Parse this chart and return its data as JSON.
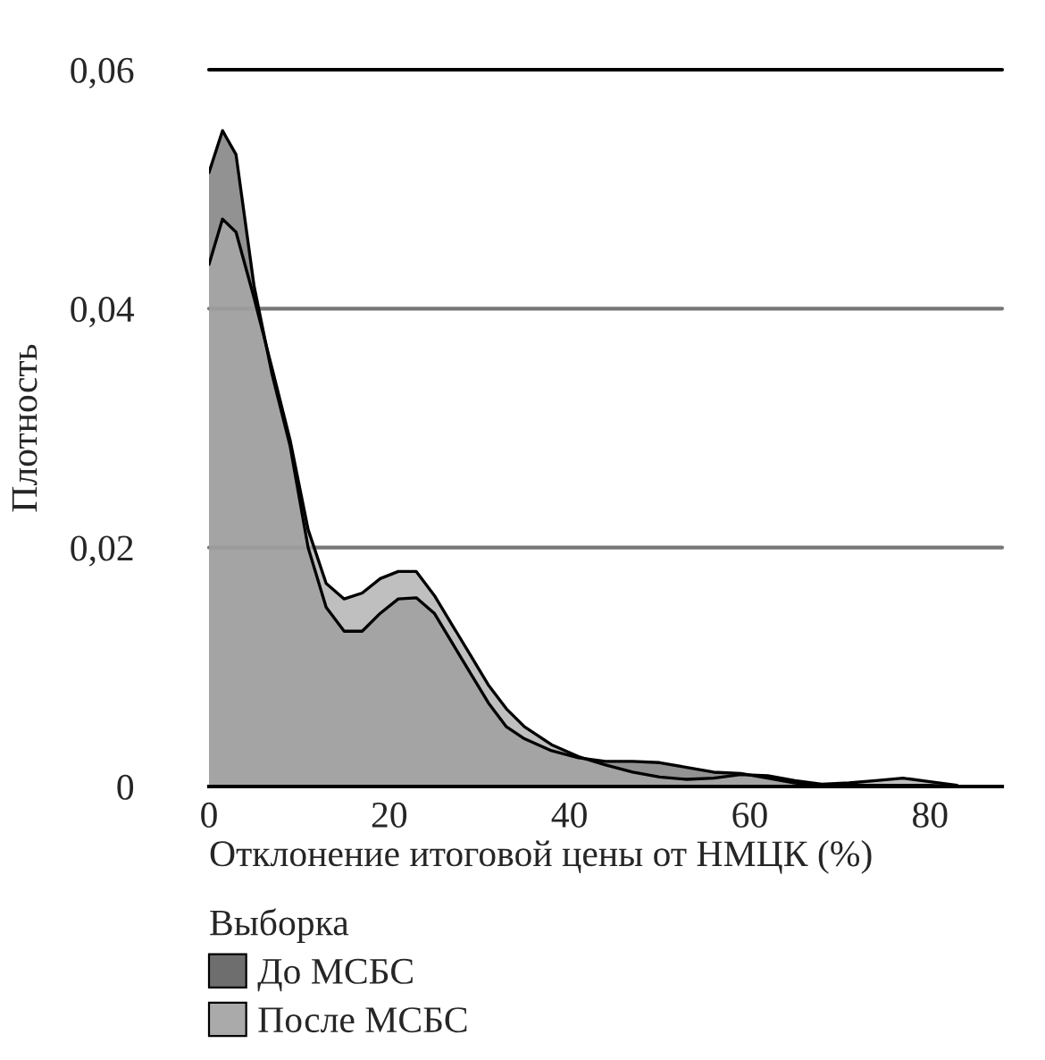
{
  "chart_data": {
    "type": "area",
    "xlabel": "Отклонение итоговой цены от НМЦК (%)",
    "ylabel": "Плотность",
    "legend_title": "Выборка",
    "legend": "bottom",
    "grid": "y",
    "x": [
      0,
      1.5,
      3,
      5,
      7,
      9,
      11,
      13,
      15,
      17,
      19,
      21,
      23,
      25,
      27,
      29,
      31,
      33,
      35,
      38,
      41,
      44,
      47,
      50,
      53,
      56,
      59,
      62,
      65,
      68,
      71,
      74,
      77,
      80,
      83
    ],
    "series": [
      {
        "name": "До МСБС",
        "color": "#6e6e6e",
        "values": [
          0.0514,
          0.0549,
          0.0529,
          0.0419,
          0.0345,
          0.0285,
          0.02,
          0.015,
          0.013,
          0.013,
          0.0145,
          0.0157,
          0.0158,
          0.0145,
          0.012,
          0.0095,
          0.007,
          0.005,
          0.004,
          0.003,
          0.0024,
          0.0021,
          0.0021,
          0.002,
          0.0016,
          0.0012,
          0.0011,
          0.0007,
          0.0003,
          0.0001,
          0.0001,
          0.0001,
          0.0001,
          0.0001,
          0
        ]
      },
      {
        "name": "После МСБС",
        "color": "#aaaaaa",
        "values": [
          0.0437,
          0.0475,
          0.0464,
          0.0409,
          0.035,
          0.029,
          0.0215,
          0.017,
          0.0157,
          0.0162,
          0.0174,
          0.018,
          0.018,
          0.016,
          0.0135,
          0.011,
          0.0085,
          0.0065,
          0.005,
          0.0035,
          0.0025,
          0.0018,
          0.0012,
          0.0008,
          0.0006,
          0.0007,
          0.001,
          0.0009,
          0.0005,
          0.0002,
          0.0003,
          0.0005,
          0.0007,
          0.0004,
          0.0001
        ]
      }
    ],
    "xlim": [
      0,
      88
    ],
    "xticks": [
      0,
      20,
      40,
      60,
      80
    ],
    "ylim": [
      0,
      0.06
    ],
    "yticks": [
      {
        "value": 0,
        "label": "0"
      },
      {
        "value": 0.02,
        "label": "0,02"
      },
      {
        "value": 0.04,
        "label": "0,04"
      },
      {
        "value": 0.06,
        "label": "0,06"
      }
    ]
  }
}
